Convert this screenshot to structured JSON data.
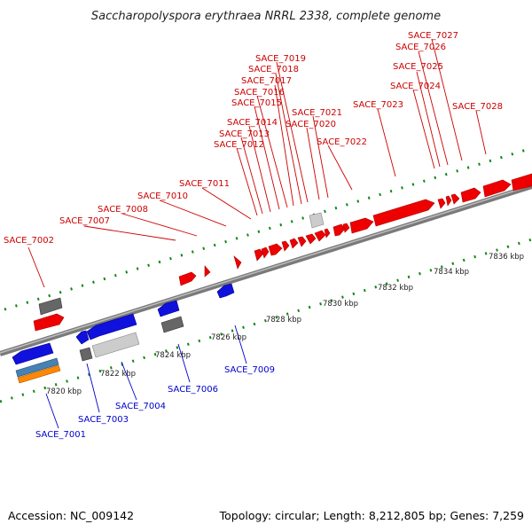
{
  "title": "Saccharopolyspora erythraea NRRL 2338, complete genome",
  "footer": {
    "accession": "Accession: NC_009142",
    "summary": "Topology: circular; Length: 8,212,805 bp; Genes: 7,259"
  },
  "colors": {
    "forward": "#ee0000",
    "reverse": "#1111dd",
    "dark_gray": "#666666",
    "light_gray": "#cccccc",
    "steel_blue": "#4682b4",
    "orange": "#ff8800",
    "label_forward": "#cc0000",
    "label_reverse": "#0000cc",
    "ruler_tick": "#118811",
    "backbone": "#888888"
  },
  "scale_labels": [
    "7820 kbp",
    "7822 kbp",
    "7824 kbp",
    "7826 kbp",
    "7828 kbp",
    "7830 kbp",
    "7832 kbp",
    "7834 kbp",
    "7836 kbp"
  ],
  "top_labels": [
    "SACE_7002",
    "SACE_7007",
    "SACE_7008",
    "SACE_7010",
    "SACE_7011",
    "SACE_7012",
    "SACE_7013",
    "SACE_7014",
    "SACE_7015",
    "SACE_7016",
    "SACE_7017",
    "SACE_7018",
    "SACE_7019",
    "SACE_7021",
    "SACE_7020",
    "SACE_7022",
    "SACE_7023",
    "SACE_7024",
    "SACE_7025",
    "SACE_7026",
    "SACE_7027",
    "SACE_7028"
  ],
  "bottom_labels": [
    "SACE_7001",
    "SACE_7003",
    "SACE_7004",
    "SACE_7006",
    "SACE_7009"
  ]
}
